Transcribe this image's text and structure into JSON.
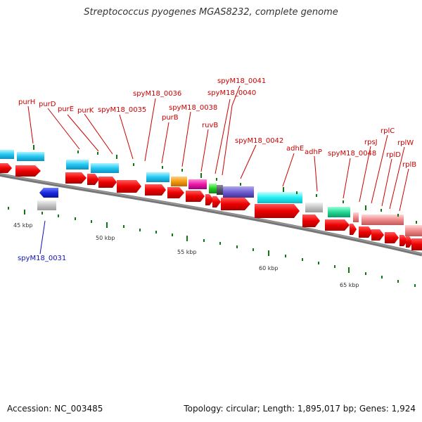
{
  "title": "Streptococcus pyogenes MGAS8232, complete genome",
  "footer": {
    "accession": "Accession: NC_003485",
    "summary": "Topology: circular; Length: 1,895,017 bp; Genes: 1,924"
  },
  "scale_labels": [
    "45 kbp",
    "50 kbp",
    "55 kbp",
    "60 kbp",
    "65 kbp"
  ],
  "gene_labels": {
    "purH": "purH",
    "purD": "purD",
    "purE": "purE",
    "purK": "purK",
    "spyM18_0035": "spyM18_0035",
    "spyM18_0036": "spyM18_0036",
    "purB": "purB",
    "spyM18_0038": "spyM18_0038",
    "ruvB": "ruvB",
    "spyM18_0040": "spyM18_0040",
    "spyM18_0041": "spyM18_0041",
    "spyM18_0042": "spyM18_0042",
    "adhE": "adhE",
    "adhP": "adhP",
    "spyM18_0048": "spyM18_0048",
    "rpsJ": "rpsJ",
    "rplC": "rplC",
    "rplD": "rplD",
    "rplW": "rplW",
    "rplB": "rplB",
    "spyM18_0031": "spyM18_0031"
  },
  "colors": {
    "label_red": "#cc0000",
    "label_blue": "#1111bb",
    "cds": "#ee1111",
    "backbone": "#777777",
    "tick": "#117711"
  }
}
